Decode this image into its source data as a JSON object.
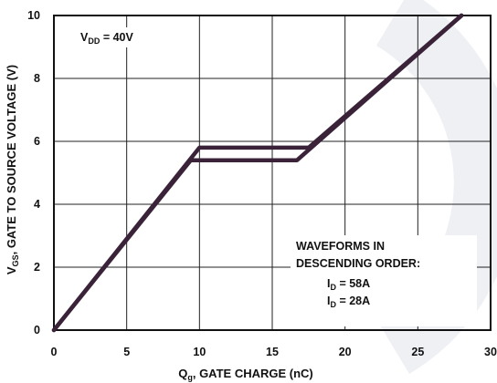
{
  "chart_data": {
    "type": "line",
    "xlabel": {
      "main": "Q",
      "sub": "g",
      "rest": ", GATE CHARGE (nC)"
    },
    "ylabel": {
      "main": "V",
      "sub": "GS",
      "rest": ", GATE TO SOURCE VOLTAGE (V)"
    },
    "xlim": [
      0,
      30
    ],
    "ylim": [
      0,
      10
    ],
    "x_ticks": [
      0,
      5,
      10,
      15,
      20,
      25,
      30
    ],
    "y_ticks": [
      0,
      2,
      4,
      6,
      8,
      10
    ],
    "x_tick_labels": [
      "0",
      "5",
      "10",
      "15",
      "20",
      "25",
      "30"
    ],
    "y_tick_labels": [
      "0",
      "2",
      "4",
      "6",
      "8",
      "10"
    ],
    "grid": true,
    "series_color": "#3a2238",
    "series": [
      {
        "name": "I_D = 58A",
        "points": [
          [
            0,
            0
          ],
          [
            10,
            5.8
          ],
          [
            17.5,
            5.8
          ],
          [
            28,
            10
          ]
        ]
      },
      {
        "name": "I_D = 28A",
        "points": [
          [
            0,
            0
          ],
          [
            9.4,
            5.4
          ],
          [
            16.7,
            5.4
          ],
          [
            28,
            10
          ]
        ]
      }
    ],
    "annotations": {
      "vdd": {
        "main": "V",
        "sub": "DD",
        "rest": " = 40V"
      },
      "legend_title_1": "WAVEFORMS IN",
      "legend_title_2": "DESCENDING ORDER:",
      "legend_item_1": {
        "main": "I",
        "sub": "D",
        "rest": " = 58A"
      },
      "legend_item_2": {
        "main": "I",
        "sub": "D",
        "rest": " = 28A"
      }
    }
  }
}
